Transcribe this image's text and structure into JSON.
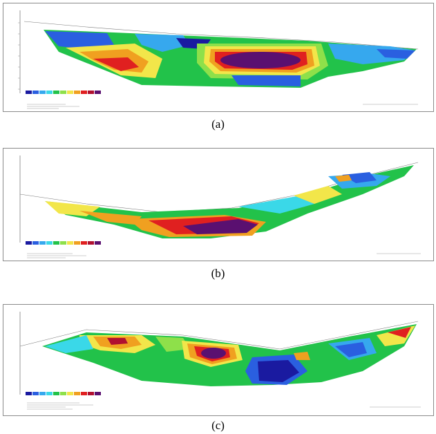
{
  "panels": [
    {
      "id": "a",
      "caption": "(a)"
    },
    {
      "id": "b",
      "caption": "(b)"
    },
    {
      "id": "c",
      "caption": "(c)"
    }
  ],
  "colors": {
    "deep_blue": "#1a1aa0",
    "blue": "#2a5fe0",
    "light_blue": "#36a8ee",
    "cyan": "#3ad8e8",
    "green": "#22c24a",
    "light_green": "#8ee04a",
    "yellow": "#f2e64a",
    "orange": "#f0a020",
    "red": "#e02020",
    "dark_red": "#b01030",
    "purple": "#5a1070"
  }
}
